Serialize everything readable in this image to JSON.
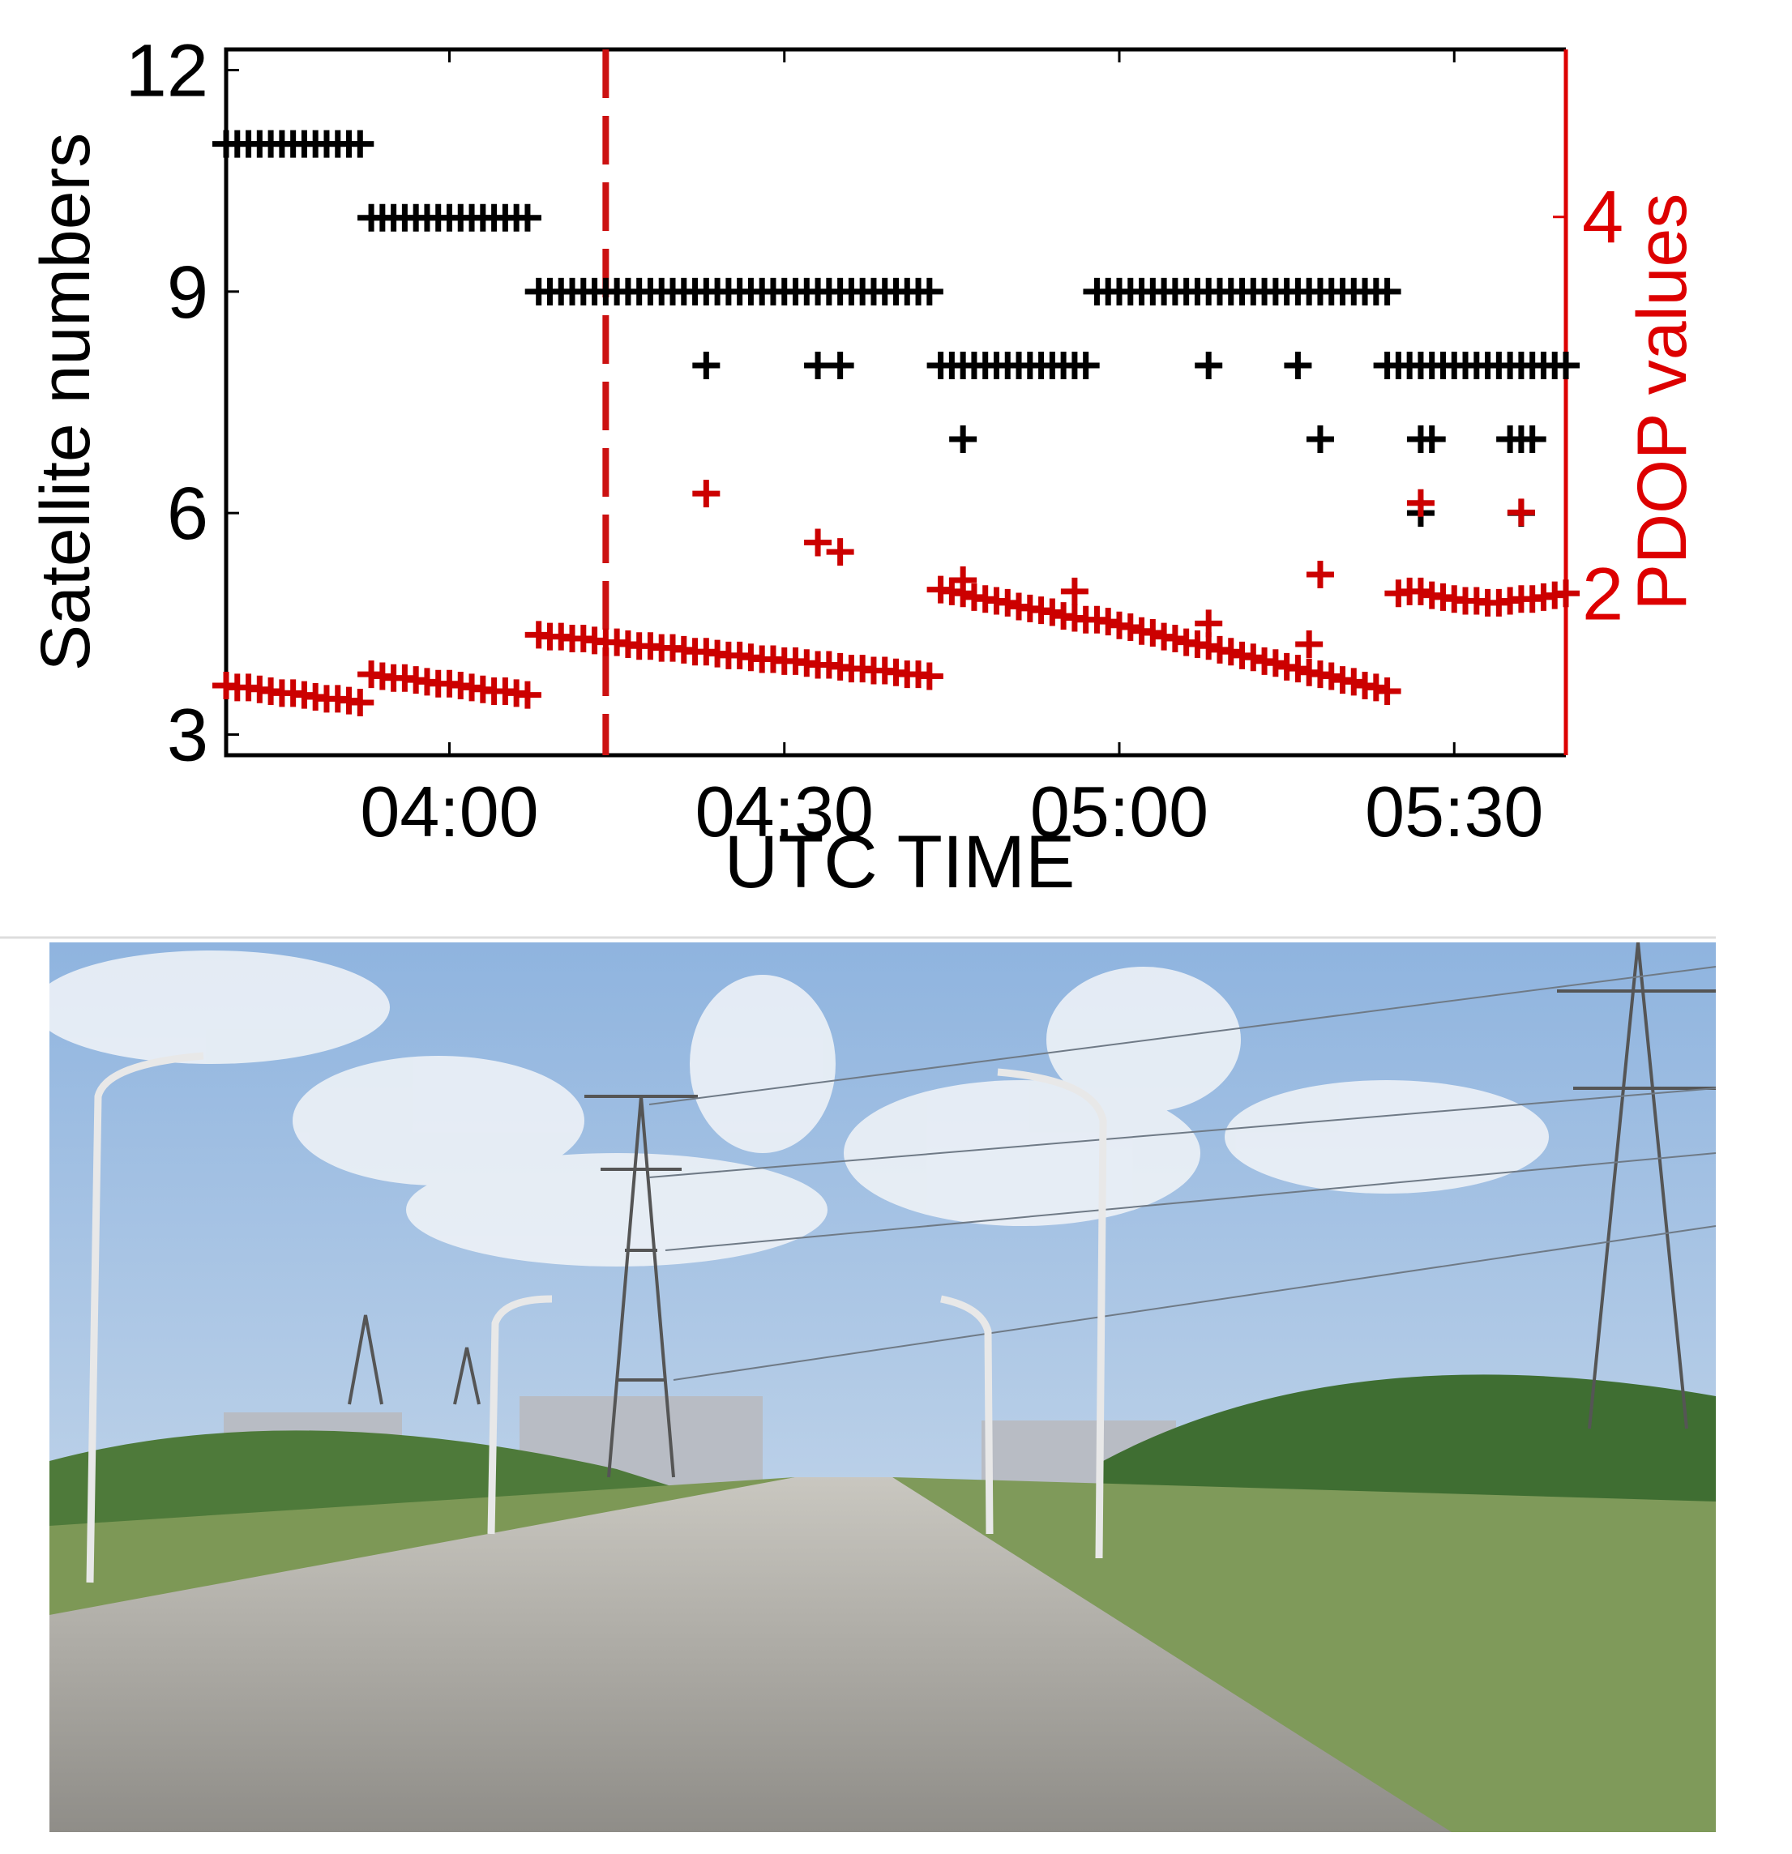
{
  "chart_data": {
    "type": "scatter",
    "x_label": "UTC TIME",
    "y_label": "Satellite numbers",
    "y2_label": "PDOP values",
    "xlim": [
      220,
      340
    ],
    "xticks": [
      {
        "value": 240,
        "label": "04:00"
      },
      {
        "value": 270,
        "label": "04:30"
      },
      {
        "value": 300,
        "label": "05:00"
      },
      {
        "value": 330,
        "label": "05:30"
      }
    ],
    "ylim": [
      2.72,
      12.28
    ],
    "yticks": [
      3,
      6,
      9,
      12
    ],
    "y2lim": [
      1.14,
      4.89
    ],
    "y2ticks": [
      2,
      4
    ],
    "y2_color": "#dd0000",
    "vline_x": 254,
    "vline_color": "#cc1111",
    "series": [
      {
        "color": "#000000",
        "x": [
          220,
          221,
          222,
          223,
          224,
          225,
          226,
          227,
          228,
          229,
          230,
          231,
          232,
          233,
          234,
          235,
          236,
          237,
          238,
          239,
          240,
          241,
          242,
          243,
          244,
          245,
          246,
          247,
          248,
          249,
          250,
          251,
          252,
          253,
          254,
          255,
          256,
          257,
          258,
          259,
          260,
          261,
          262,
          263,
          264,
          265,
          266,
          267,
          268,
          269,
          270,
          271,
          272,
          273,
          274,
          275,
          276,
          277,
          278,
          279,
          280,
          281,
          282,
          283,
          263,
          273,
          275,
          284,
          285,
          286,
          287,
          288,
          289,
          290,
          291,
          292,
          293,
          294,
          295,
          296,
          297,
          286,
          298,
          299,
          300,
          301,
          302,
          303,
          304,
          305,
          306,
          307,
          308,
          309,
          310,
          311,
          312,
          313,
          314,
          315,
          316,
          317,
          318,
          319,
          320,
          321,
          322,
          323,
          324,
          308,
          316,
          324,
          318,
          325,
          326,
          327,
          328,
          329,
          330,
          331,
          332,
          333,
          334,
          335,
          336,
          337,
          338,
          339,
          340,
          327,
          328,
          335,
          336,
          337,
          327,
          336
        ],
        "values": [
          11,
          11,
          11,
          11,
          11,
          11,
          11,
          11,
          11,
          11,
          11,
          11,
          11,
          10,
          10,
          10,
          10,
          10,
          10,
          10,
          10,
          10,
          10,
          10,
          10,
          10,
          10,
          10,
          9,
          9,
          9,
          9,
          9,
          9,
          9,
          9,
          9,
          9,
          9,
          9,
          9,
          9,
          9,
          9,
          9,
          9,
          9,
          9,
          9,
          9,
          9,
          9,
          9,
          9,
          9,
          9,
          9,
          9,
          9,
          9,
          9,
          9,
          9,
          9,
          8,
          8,
          8,
          8,
          8,
          8,
          8,
          8,
          8,
          8,
          8,
          8,
          8,
          8,
          8,
          8,
          8,
          7,
          9,
          9,
          9,
          9,
          9,
          9,
          9,
          9,
          9,
          9,
          9,
          9,
          9,
          9,
          9,
          9,
          9,
          9,
          9,
          9,
          9,
          9,
          9,
          9,
          9,
          9,
          9,
          8,
          8,
          8,
          7,
          8,
          8,
          8,
          8,
          8,
          8,
          8,
          8,
          8,
          8,
          8,
          8,
          8,
          8,
          8,
          8,
          7,
          7,
          7,
          7,
          7,
          6,
          6
        ]
      },
      {
        "color": "#cc0000",
        "axis": "y2",
        "x": [
          220,
          221,
          222,
          223,
          224,
          225,
          226,
          227,
          228,
          229,
          230,
          231,
          232,
          233,
          234,
          235,
          236,
          237,
          238,
          239,
          240,
          241,
          242,
          243,
          244,
          245,
          246,
          247,
          248,
          249,
          250,
          251,
          252,
          253,
          254,
          255,
          256,
          257,
          258,
          259,
          260,
          261,
          262,
          263,
          264,
          265,
          266,
          267,
          268,
          269,
          270,
          271,
          272,
          273,
          274,
          275,
          276,
          277,
          278,
          279,
          280,
          281,
          282,
          283,
          263,
          273,
          275,
          284,
          285,
          286,
          287,
          288,
          289,
          290,
          291,
          292,
          293,
          294,
          295,
          296,
          297,
          286,
          296,
          298,
          299,
          300,
          301,
          302,
          303,
          304,
          305,
          306,
          307,
          308,
          309,
          310,
          311,
          312,
          313,
          314,
          315,
          316,
          317,
          318,
          319,
          320,
          321,
          322,
          323,
          324,
          308,
          317,
          318,
          325,
          326,
          327,
          328,
          329,
          330,
          331,
          332,
          333,
          334,
          335,
          336,
          337,
          338,
          339,
          340,
          327,
          336
        ],
        "values": [
          1.51,
          1.5,
          1.5,
          1.49,
          1.48,
          1.47,
          1.47,
          1.46,
          1.45,
          1.44,
          1.44,
          1.43,
          1.42,
          1.57,
          1.56,
          1.55,
          1.55,
          1.54,
          1.53,
          1.52,
          1.52,
          1.51,
          1.5,
          1.49,
          1.48,
          1.48,
          1.47,
          1.46,
          1.78,
          1.77,
          1.77,
          1.76,
          1.76,
          1.75,
          1.74,
          1.74,
          1.73,
          1.72,
          1.72,
          1.71,
          1.71,
          1.7,
          1.69,
          1.69,
          1.68,
          1.67,
          1.67,
          1.66,
          1.65,
          1.65,
          1.64,
          1.64,
          1.63,
          1.62,
          1.62,
          1.61,
          1.6,
          1.6,
          1.59,
          1.59,
          1.58,
          1.57,
          1.57,
          1.56,
          2.53,
          2.27,
          2.22,
          2.02,
          2.01,
          2.0,
          1.98,
          1.97,
          1.96,
          1.95,
          1.93,
          1.92,
          1.91,
          1.9,
          1.88,
          1.87,
          1.86,
          2.07,
          2.01,
          1.86,
          1.85,
          1.83,
          1.82,
          1.8,
          1.79,
          1.77,
          1.76,
          1.74,
          1.73,
          1.72,
          1.7,
          1.69,
          1.67,
          1.66,
          1.64,
          1.63,
          1.61,
          1.6,
          1.58,
          1.57,
          1.56,
          1.54,
          1.53,
          1.51,
          1.5,
          1.48,
          1.84,
          1.73,
          2.1,
          2.0,
          2.01,
          2.01,
          1.99,
          1.98,
          1.97,
          1.96,
          1.96,
          1.95,
          1.95,
          1.96,
          1.97,
          1.97,
          1.98,
          1.99,
          2.0,
          2.48,
          2.43
        ]
      }
    ]
  }
}
